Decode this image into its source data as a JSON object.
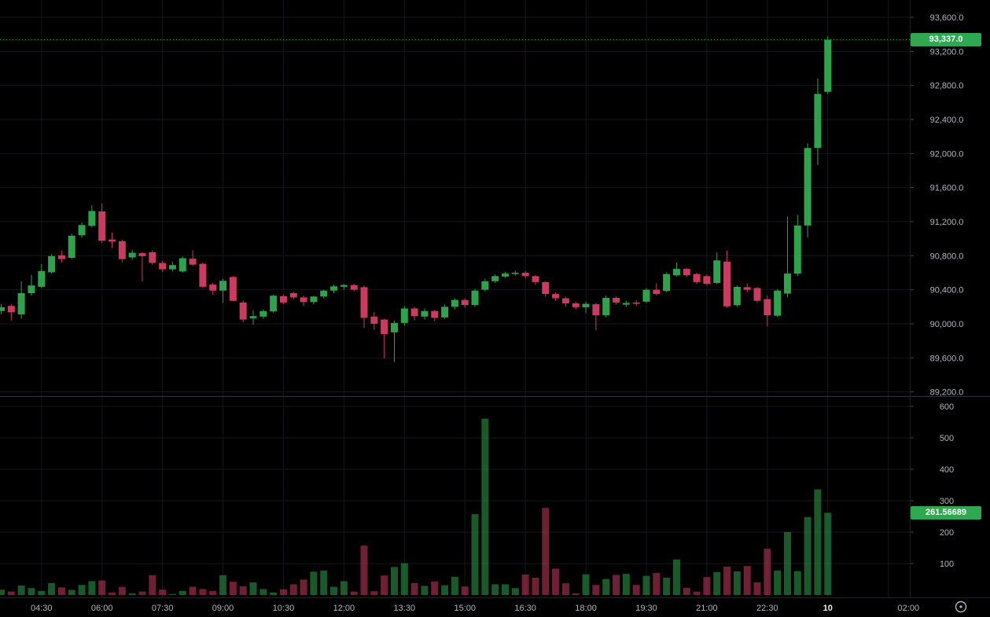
{
  "chart": {
    "last_price_label": "93,337.0",
    "last_volume_label": "261.56689",
    "price_axis_ticks": [
      {
        "value": 93600,
        "label": "93,600.0"
      },
      {
        "value": 93200,
        "label": "93,200.0"
      },
      {
        "value": 92800,
        "label": "92,800.0"
      },
      {
        "value": 92400,
        "label": "92,400.0"
      },
      {
        "value": 92000,
        "label": "92,000.0"
      },
      {
        "value": 91600,
        "label": "91,600.0"
      },
      {
        "value": 91200,
        "label": "91,200.0"
      },
      {
        "value": 90800,
        "label": "90,800.0"
      },
      {
        "value": 90400,
        "label": "90,400.0"
      },
      {
        "value": 90000,
        "label": "90,000.0"
      },
      {
        "value": 89600,
        "label": "89,600.0"
      },
      {
        "value": 89200,
        "label": "89,200.0"
      }
    ],
    "volume_axis_ticks": [
      {
        "value": 600,
        "label": "600"
      },
      {
        "value": 500,
        "label": "500"
      },
      {
        "value": 400,
        "label": "400"
      },
      {
        "value": 300,
        "label": "300"
      },
      {
        "value": 200,
        "label": "200"
      },
      {
        "value": 100,
        "label": "100"
      }
    ],
    "time_labels": [
      {
        "candle_index": 4,
        "text": "04:30",
        "bold": false
      },
      {
        "candle_index": 10,
        "text": "06:00",
        "bold": false
      },
      {
        "candle_index": 16,
        "text": "07:30",
        "bold": false
      },
      {
        "candle_index": 22,
        "text": "09:00",
        "bold": false
      },
      {
        "candle_index": 28,
        "text": "10:30",
        "bold": false
      },
      {
        "candle_index": 34,
        "text": "12:00",
        "bold": false
      },
      {
        "candle_index": 40,
        "text": "13:30",
        "bold": false
      },
      {
        "candle_index": 46,
        "text": "15:00",
        "bold": false
      },
      {
        "candle_index": 52,
        "text": "16:30",
        "bold": false
      },
      {
        "candle_index": 58,
        "text": "18:00",
        "bold": false
      },
      {
        "candle_index": 64,
        "text": "19:30",
        "bold": false
      },
      {
        "candle_index": 70,
        "text": "21:00",
        "bold": false
      },
      {
        "candle_index": 76,
        "text": "22:30",
        "bold": false
      },
      {
        "candle_index": 82,
        "text": "10",
        "bold": true
      },
      {
        "candle_index": 90,
        "text": "02:00",
        "bold": false
      }
    ],
    "colors": {
      "up": "#2fa24c",
      "down": "#cc3a60",
      "badge": "#2ea94f",
      "last_price_line": "#2ea94f",
      "grid": "#14171c",
      "axis_text": "#b2b5be",
      "axis_text_bold": "#eaecef",
      "separator": "#2e3340",
      "axis_tick": "#3f444c",
      "background": "#000000"
    },
    "icons": {
      "session_clock": "clock-icon"
    }
  },
  "chart_data": {
    "type": "candlestick",
    "interval": "15m",
    "first_candle_time": "03:30",
    "date_change_label": "10",
    "last_price": 93337.0,
    "last_volume": 261.56689,
    "price_axis_range": [
      89200,
      93600
    ],
    "volume_axis_range": [
      0,
      600
    ],
    "grid": true,
    "candles_ohlcv": [
      [
        90150,
        90230,
        90110,
        90195,
        17
      ],
      [
        90210,
        90230,
        90040,
        90135,
        11
      ],
      [
        90110,
        90500,
        90060,
        90360,
        30
      ],
      [
        90360,
        90575,
        90330,
        90450,
        22
      ],
      [
        90435,
        90700,
        90420,
        90620,
        13
      ],
      [
        90605,
        90820,
        90590,
        90795,
        38
      ],
      [
        90805,
        90860,
        90720,
        90760,
        24
      ],
      [
        90775,
        91060,
        90760,
        91035,
        16
      ],
      [
        91040,
        91190,
        91010,
        91160,
        32
      ],
      [
        91150,
        91390,
        91130,
        91325,
        44
      ],
      [
        91320,
        91410,
        90950,
        90975,
        46
      ],
      [
        90990,
        91070,
        90890,
        90965,
        8
      ],
      [
        90970,
        90990,
        90720,
        90760,
        26
      ],
      [
        90780,
        90870,
        90750,
        90835,
        5
      ],
      [
        90830,
        90840,
        90500,
        90795,
        11
      ],
      [
        90840,
        90860,
        90690,
        90715,
        63
      ],
      [
        90715,
        90740,
        90610,
        90640,
        17
      ],
      [
        90640,
        90730,
        90615,
        90690,
        3
      ],
      [
        90615,
        90790,
        90600,
        90770,
        13
      ],
      [
        90765,
        90860,
        90680,
        90695,
        26
      ],
      [
        90705,
        90720,
        90420,
        90435,
        19
      ],
      [
        90460,
        90480,
        90340,
        90390,
        13
      ],
      [
        90390,
        90530,
        90245,
        90505,
        63
      ],
      [
        90550,
        90560,
        90265,
        90270,
        42
      ],
      [
        90250,
        90270,
        90020,
        90050,
        28
      ],
      [
        90065,
        90160,
        89990,
        90090,
        40
      ],
      [
        90085,
        90170,
        90060,
        90150,
        19
      ],
      [
        90145,
        90340,
        90130,
        90330,
        8
      ],
      [
        90325,
        90340,
        90230,
        90250,
        18
      ],
      [
        90360,
        90380,
        90290,
        90310,
        34
      ],
      [
        90310,
        90330,
        90210,
        90255,
        49
      ],
      [
        90255,
        90330,
        90230,
        90320,
        74
      ],
      [
        90320,
        90400,
        90300,
        90390,
        78
      ],
      [
        90390,
        90460,
        90360,
        90440,
        26
      ],
      [
        90435,
        90470,
        90400,
        90455,
        44
      ],
      [
        90455,
        90470,
        90380,
        90400,
        11
      ],
      [
        90430,
        90450,
        89950,
        90070,
        157
      ],
      [
        90085,
        90140,
        89930,
        90000,
        12
      ],
      [
        90050,
        90060,
        89590,
        89880,
        62
      ],
      [
        89900,
        90040,
        89550,
        90010,
        89
      ],
      [
        90010,
        90210,
        89980,
        90180,
        101
      ],
      [
        90180,
        90200,
        90040,
        90090,
        38
      ],
      [
        90085,
        90180,
        90050,
        90150,
        29
      ],
      [
        90150,
        90165,
        90030,
        90070,
        43
      ],
      [
        90075,
        90230,
        90060,
        90200,
        31
      ],
      [
        90200,
        90300,
        90170,
        90280,
        58
      ],
      [
        90280,
        90300,
        90190,
        90220,
        27
      ],
      [
        90220,
        90410,
        90200,
        90390,
        257
      ],
      [
        90400,
        90530,
        90380,
        90500,
        561
      ],
      [
        90500,
        90580,
        90480,
        90560,
        34
      ],
      [
        90555,
        90610,
        90540,
        90590,
        34
      ],
      [
        90585,
        90625,
        90565,
        90600,
        22
      ],
      [
        90600,
        90620,
        90535,
        90560,
        65
      ],
      [
        90560,
        90575,
        90460,
        90490,
        55
      ],
      [
        90490,
        90500,
        90320,
        90350,
        277
      ],
      [
        90350,
        90370,
        90270,
        90300,
        84
      ],
      [
        90300,
        90320,
        90200,
        90240,
        37
      ],
      [
        90240,
        90260,
        90170,
        90195,
        5
      ],
      [
        90195,
        90260,
        90125,
        90235,
        66
      ],
      [
        90230,
        90245,
        89920,
        90100,
        32
      ],
      [
        90100,
        90330,
        90075,
        90305,
        51
      ],
      [
        90305,
        90320,
        90225,
        90250,
        64
      ],
      [
        90225,
        90270,
        90200,
        90245,
        67
      ],
      [
        90250,
        90280,
        90210,
        90235,
        32
      ],
      [
        90260,
        90420,
        90240,
        90400,
        61
      ],
      [
        90400,
        90475,
        90330,
        90350,
        70
      ],
      [
        90385,
        90605,
        90370,
        90585,
        55
      ],
      [
        90570,
        90720,
        90555,
        90645,
        113
      ],
      [
        90645,
        90660,
        90550,
        90570,
        23
      ],
      [
        90585,
        90600,
        90470,
        90490,
        11
      ],
      [
        90560,
        90580,
        90450,
        90470,
        57
      ],
      [
        90480,
        90840,
        90465,
        90745,
        73
      ],
      [
        90730,
        90860,
        90190,
        90205,
        90
      ],
      [
        90218,
        90450,
        90200,
        90434,
        75
      ],
      [
        90430,
        90470,
        90370,
        90400,
        92
      ],
      [
        90420,
        90435,
        90250,
        90270,
        40
      ],
      [
        90290,
        90330,
        89970,
        90100,
        147
      ],
      [
        90095,
        90410,
        90080,
        90390,
        78
      ],
      [
        90355,
        91260,
        90310,
        90590,
        200
      ],
      [
        90590,
        91280,
        90560,
        91155,
        76
      ],
      [
        91155,
        92120,
        91015,
        92065,
        248
      ],
      [
        92065,
        92880,
        91865,
        92700,
        336
      ],
      [
        92725,
        93380,
        92700,
        93337,
        261.56689
      ]
    ]
  }
}
